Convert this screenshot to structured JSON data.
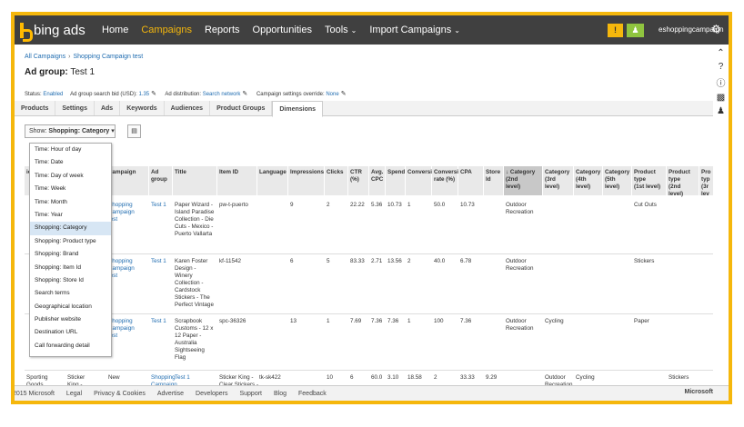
{
  "brand": {
    "logo_text": "bing ads"
  },
  "nav": {
    "items": [
      {
        "label": "Home",
        "active": false,
        "chevron": false
      },
      {
        "label": "Campaigns",
        "active": true,
        "chevron": false
      },
      {
        "label": "Reports",
        "active": false,
        "chevron": false
      },
      {
        "label": "Opportunities",
        "active": false,
        "chevron": false
      },
      {
        "label": "Tools",
        "active": false,
        "chevron": true
      },
      {
        "label": "Import Campaigns",
        "active": false,
        "chevron": true
      }
    ],
    "account": "eshoppingcampaign"
  },
  "breadcrumb": {
    "items": [
      "All Campaigns",
      "Shopping Campaign test"
    ]
  },
  "header": {
    "prefix": "Ad group:",
    "name": "Test 1"
  },
  "status_row": {
    "status_label": "Status:",
    "status_value": "Enabled",
    "bid_label": "Ad group search bid (USD):",
    "bid_value": "1.35",
    "distribution_label": "Ad distribution:",
    "distribution_value": "Search network",
    "override_label": "Campaign settings override:",
    "override_value": "None"
  },
  "tabs": [
    {
      "label": "Products",
      "active": false
    },
    {
      "label": "Settings",
      "active": false
    },
    {
      "label": "Ads",
      "active": false
    },
    {
      "label": "Keywords",
      "active": false
    },
    {
      "label": "Audiences",
      "active": false
    },
    {
      "label": "Product Groups",
      "active": false
    },
    {
      "label": "Dimensions",
      "active": true
    }
  ],
  "show_dropdown": {
    "prefix": "Show:",
    "value": "Shopping: Category"
  },
  "dropdown_menu": [
    {
      "label": "Time: Hour of day",
      "selected": false
    },
    {
      "label": "Time: Date",
      "selected": false
    },
    {
      "label": "Time: Day of week",
      "selected": false
    },
    {
      "label": "Time: Week",
      "selected": false
    },
    {
      "label": "Time: Month",
      "selected": false
    },
    {
      "label": "Time: Year",
      "selected": false
    },
    {
      "label": "Shopping: Category",
      "selected": true
    },
    {
      "label": "Shopping: Product type",
      "selected": false
    },
    {
      "label": "Shopping: Brand",
      "selected": false
    },
    {
      "label": "Shopping: Item Id",
      "selected": false
    },
    {
      "label": "Shopping: Store Id",
      "selected": false
    },
    {
      "label": "Search terms",
      "selected": false
    },
    {
      "label": "Geographical location",
      "selected": false
    },
    {
      "label": "Publisher website",
      "selected": false
    },
    {
      "label": "Destination URL",
      "selected": false
    },
    {
      "label": "Call forwarding detail",
      "selected": false
    }
  ],
  "table": {
    "columns": [
      {
        "label": "ion",
        "sorted": false
      },
      {
        "label": "Campaign",
        "sorted": false
      },
      {
        "label": "Ad\ngroup",
        "sorted": false
      },
      {
        "label": "Title",
        "sorted": false
      },
      {
        "label": "Item ID",
        "sorted": false
      },
      {
        "label": "Language",
        "sorted": false
      },
      {
        "label": "Impressions",
        "sorted": false
      },
      {
        "label": "Clicks",
        "sorted": false
      },
      {
        "label": "CTR\n(%)",
        "sorted": false
      },
      {
        "label": "Avg.\nCPC",
        "sorted": false
      },
      {
        "label": "Spend",
        "sorted": false
      },
      {
        "label": "Conversions",
        "sorted": false
      },
      {
        "label": "Conversion\nrate (%)",
        "sorted": false
      },
      {
        "label": "CPA",
        "sorted": false
      },
      {
        "label": "Store\nId",
        "sorted": false
      },
      {
        "label": "↓ Category\n(2nd\nlevel)",
        "sorted": true
      },
      {
        "label": "Category\n(3rd\nlevel)",
        "sorted": false
      },
      {
        "label": "Category\n(4th\nlevel)",
        "sorted": false
      },
      {
        "label": "Category\n(5th\nlevel)",
        "sorted": false
      },
      {
        "label": "Product type\n(1st level)",
        "sorted": false
      },
      {
        "label": "Product\ntype\n(2nd\nlevel)",
        "sorted": false
      },
      {
        "label": "Pro\ntyp\n(3r\nlev",
        "sorted": false
      }
    ],
    "rows": [
      [
        "",
        "Shopping\nCampaign\ntest",
        "Test 1",
        "Paper Wizard -\nIsland Paradise\nCollection - Die\nCuts - Mexico -\nPuerto Vallarta",
        "pw-t-puerto",
        "",
        "9",
        "2",
        "22.22",
        "5.36",
        "10.73",
        "1",
        "50.0",
        "10.73",
        "",
        "Outdoor\nRecreation",
        "",
        "",
        "",
        "Cut Outs",
        "",
        ""
      ],
      [
        "",
        "Shopping\nCampaign\ntest",
        "Test 1",
        "Karen Foster\nDesign -\nWinery\nCollection -\nCardstock\nStickers - The\nPerfect Vintage",
        "kf-11542",
        "",
        "6",
        "5",
        "83.33",
        "2.71",
        "13.56",
        "2",
        "40.0",
        "6.78",
        "",
        "Outdoor\nRecreation",
        "",
        "",
        "",
        "Stickers",
        "",
        ""
      ],
      [
        "",
        "Shopping\nCampaign\ntest",
        "Test 1",
        "Scrapbook\nCustoms - 12 x\n12 Paper -\nAustralia\nSightseeing\nFlag",
        "spc-36326",
        "",
        "13",
        "1",
        "7.69",
        "7.36",
        "7.36",
        "1",
        "100",
        "7.36",
        "",
        "Outdoor\nRecreation",
        "Cycling",
        "",
        "",
        "Paper",
        "",
        ""
      ],
      [
        "Sporting\nGoods",
        "Sticker\nKing -",
        "New",
        "Shopping\nCampaign\ntest",
        "Test 1",
        "Sticker King -\nClear Stickers -\nThe Vandal",
        "tk-sk422",
        "",
        "10",
        "6",
        "60.0",
        "3.10",
        "18.58",
        "2",
        "33.33",
        "9.29",
        "",
        "Outdoor\nRecreation",
        "Cycling",
        "",
        "",
        "Stickers"
      ]
    ]
  },
  "footer": {
    "links": [
      "2015 Microsoft",
      "Legal",
      "Privacy & Cookies",
      "Advertise",
      "Developers",
      "Support",
      "Blog",
      "Feedback"
    ],
    "brand": "Microsoft"
  }
}
